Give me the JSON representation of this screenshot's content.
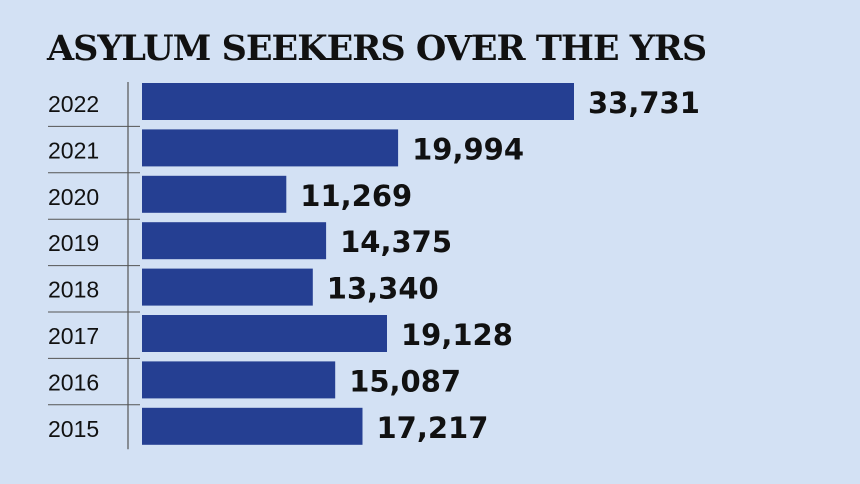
{
  "chart_data": {
    "type": "bar",
    "orientation": "horizontal",
    "title": "ASYLUM SEEKERS OVER THE YRS",
    "categories": [
      "2022",
      "2021",
      "2020",
      "2019",
      "2018",
      "2017",
      "2016",
      "2015"
    ],
    "values": [
      33731,
      19994,
      11269,
      14375,
      13340,
      19128,
      15087,
      17217
    ],
    "value_labels": [
      "33,731",
      "19,994",
      "11,269",
      "14,375",
      "13,340",
      "19,128",
      "15,087",
      "17,217"
    ],
    "xlabel": "",
    "ylabel": "",
    "xlim": [
      0,
      33731
    ],
    "grid": false,
    "legend": "none",
    "colors": {
      "bar": "#253f92",
      "background": "#d3e1f4",
      "text": "#111111",
      "rule": "#555555"
    }
  }
}
